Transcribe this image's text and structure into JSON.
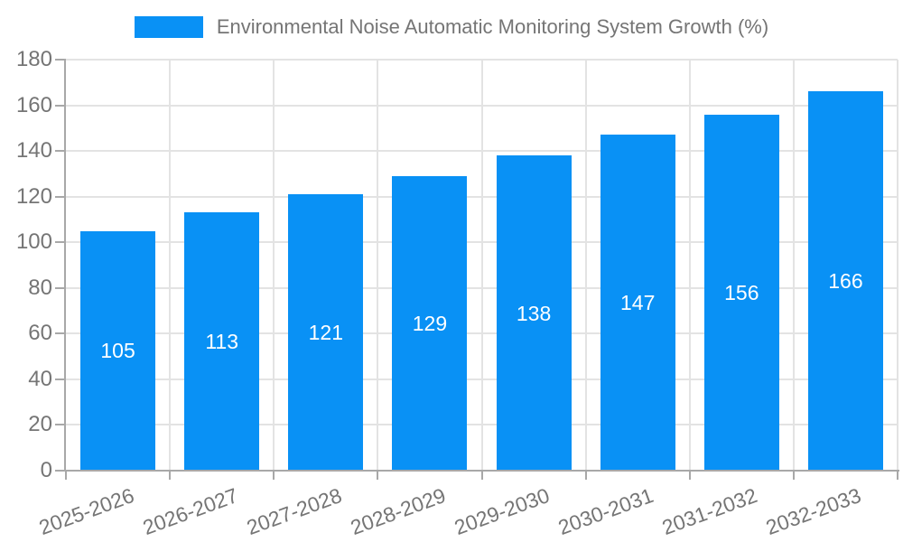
{
  "legend": {
    "label": "Environmental Noise Automatic Monitoring System Growth (%)"
  },
  "chart_data": {
    "type": "bar",
    "title": "Environmental Noise Automatic Monitoring System Growth (%)",
    "categories": [
      "2025-2026",
      "2026-2027",
      "2027-2028",
      "2028-2029",
      "2029-2030",
      "2030-2031",
      "2031-2032",
      "2032-2033"
    ],
    "values": [
      105,
      113,
      121,
      129,
      138,
      147,
      156,
      166
    ],
    "xlabel": "",
    "ylabel": "",
    "ylim": [
      0,
      180
    ],
    "ytick_step": 20,
    "yticks": [
      0,
      20,
      40,
      60,
      80,
      100,
      120,
      140,
      160,
      180
    ],
    "grid": true,
    "legend_position": "top-center",
    "bar_label_position": "inside-center",
    "colors": {
      "bar": "#0991F5",
      "bar_value_label": "#ffffff",
      "grid_line": "#E3E3E3",
      "axis_line": "#A8A8A8",
      "tick_label": "#757575",
      "legend_text": "#757575",
      "background": "#ffffff"
    }
  }
}
